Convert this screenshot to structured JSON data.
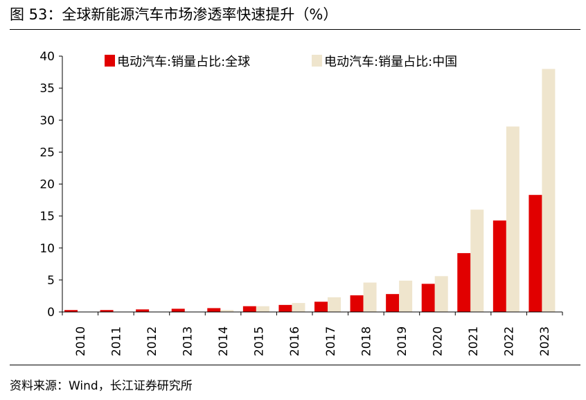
{
  "header": {
    "title": "图 53：全球新能源汽车市场渗透率快速提升（%）"
  },
  "footer": {
    "source": "资料来源：Wind，长江证券研究所"
  },
  "chart_data": {
    "type": "bar",
    "title": "",
    "xlabel": "",
    "ylabel": "",
    "ylim": [
      0,
      40
    ],
    "yticks": [
      0,
      5,
      10,
      15,
      20,
      25,
      30,
      35,
      40
    ],
    "grid": false,
    "legend_position": "top",
    "categories": [
      "2010",
      "2011",
      "2012",
      "2013",
      "2014",
      "2015",
      "2016",
      "2017",
      "2018",
      "2019",
      "2020",
      "2021",
      "2022",
      "2023"
    ],
    "series": [
      {
        "name": "电动汽车:销量占比:全球",
        "color": "#e10000",
        "values": [
          0.3,
          0.3,
          0.4,
          0.5,
          0.6,
          0.9,
          1.1,
          1.6,
          2.6,
          2.8,
          4.4,
          9.2,
          14.3,
          18.3
        ]
      },
      {
        "name": "电动汽车:销量占比:中国",
        "color": "#efe5cd",
        "values": [
          0.0,
          0.0,
          0.0,
          0.0,
          0.3,
          0.9,
          1.4,
          2.3,
          4.6,
          4.9,
          5.6,
          16.0,
          29.0,
          38.0
        ]
      }
    ]
  }
}
